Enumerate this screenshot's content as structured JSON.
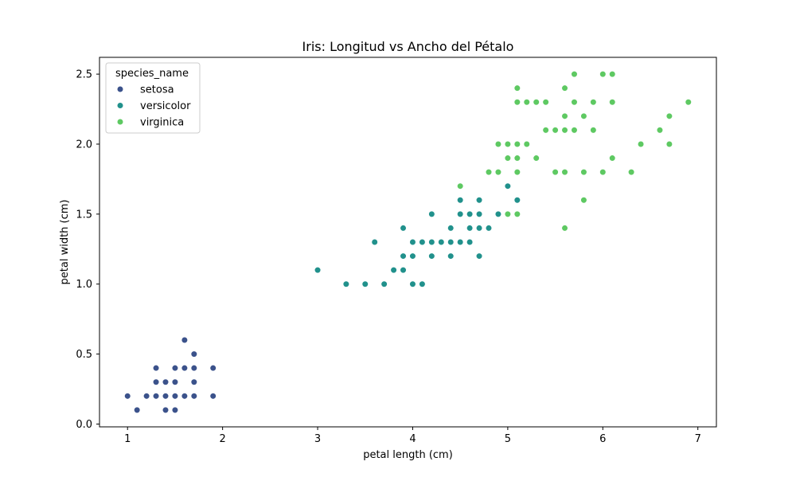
{
  "chart_data": {
    "type": "scatter",
    "title": "Iris: Longitud vs Ancho del Pétalo",
    "xlabel": "petal length (cm)",
    "ylabel": "petal width (cm)",
    "xlim": [
      0.705,
      7.195
    ],
    "ylim": [
      -0.02,
      2.62
    ],
    "x_ticks": [
      1,
      2,
      3,
      4,
      5,
      6,
      7
    ],
    "x_tick_labels": [
      "1",
      "2",
      "3",
      "4",
      "5",
      "6",
      "7"
    ],
    "y_ticks": [
      0.0,
      0.5,
      1.0,
      1.5,
      2.0,
      2.5
    ],
    "y_tick_labels": [
      "0.0",
      "0.5",
      "1.0",
      "1.5",
      "2.0",
      "2.5"
    ],
    "grid": false,
    "legend": {
      "title": "species_name",
      "placement": "top-left"
    },
    "series": [
      {
        "name": "setosa",
        "color": "#3b528b",
        "points": [
          [
            1.0,
            0.2
          ],
          [
            1.1,
            0.1
          ],
          [
            1.2,
            0.2
          ],
          [
            1.3,
            0.2
          ],
          [
            1.3,
            0.3
          ],
          [
            1.3,
            0.4
          ],
          [
            1.4,
            0.1
          ],
          [
            1.4,
            0.2
          ],
          [
            1.4,
            0.3
          ],
          [
            1.5,
            0.1
          ],
          [
            1.5,
            0.2
          ],
          [
            1.5,
            0.3
          ],
          [
            1.5,
            0.4
          ],
          [
            1.6,
            0.2
          ],
          [
            1.6,
            0.4
          ],
          [
            1.6,
            0.6
          ],
          [
            1.7,
            0.2
          ],
          [
            1.7,
            0.3
          ],
          [
            1.7,
            0.4
          ],
          [
            1.7,
            0.5
          ],
          [
            1.9,
            0.2
          ],
          [
            1.9,
            0.4
          ]
        ]
      },
      {
        "name": "versicolor",
        "color": "#21918c",
        "points": [
          [
            3.0,
            1.1
          ],
          [
            3.3,
            1.0
          ],
          [
            3.5,
            1.0
          ],
          [
            3.6,
            1.3
          ],
          [
            3.7,
            1.0
          ],
          [
            3.8,
            1.1
          ],
          [
            3.9,
            1.1
          ],
          [
            3.9,
            1.2
          ],
          [
            3.9,
            1.4
          ],
          [
            4.0,
            1.0
          ],
          [
            4.0,
            1.2
          ],
          [
            4.0,
            1.3
          ],
          [
            4.1,
            1.0
          ],
          [
            4.1,
            1.3
          ],
          [
            4.2,
            1.2
          ],
          [
            4.2,
            1.3
          ],
          [
            4.2,
            1.5
          ],
          [
            4.3,
            1.3
          ],
          [
            4.4,
            1.2
          ],
          [
            4.4,
            1.3
          ],
          [
            4.4,
            1.4
          ],
          [
            4.5,
            1.3
          ],
          [
            4.5,
            1.5
          ],
          [
            4.5,
            1.6
          ],
          [
            4.6,
            1.3
          ],
          [
            4.6,
            1.4
          ],
          [
            4.6,
            1.5
          ],
          [
            4.7,
            1.2
          ],
          [
            4.7,
            1.4
          ],
          [
            4.7,
            1.5
          ],
          [
            4.7,
            1.6
          ],
          [
            4.8,
            1.4
          ],
          [
            4.9,
            1.5
          ],
          [
            5.0,
            1.7
          ],
          [
            5.1,
            1.6
          ]
        ]
      },
      {
        "name": "virginica",
        "color": "#5ec962",
        "points": [
          [
            4.5,
            1.7
          ],
          [
            4.8,
            1.8
          ],
          [
            4.9,
            1.8
          ],
          [
            4.9,
            2.0
          ],
          [
            5.0,
            1.5
          ],
          [
            5.0,
            1.9
          ],
          [
            5.0,
            2.0
          ],
          [
            5.1,
            1.5
          ],
          [
            5.1,
            1.8
          ],
          [
            5.1,
            1.9
          ],
          [
            5.1,
            2.0
          ],
          [
            5.1,
            2.3
          ],
          [
            5.1,
            2.4
          ],
          [
            5.2,
            2.0
          ],
          [
            5.2,
            2.3
          ],
          [
            5.3,
            1.9
          ],
          [
            5.3,
            2.3
          ],
          [
            5.4,
            2.1
          ],
          [
            5.4,
            2.3
          ],
          [
            5.5,
            1.8
          ],
          [
            5.5,
            2.1
          ],
          [
            5.6,
            1.4
          ],
          [
            5.6,
            1.8
          ],
          [
            5.6,
            2.1
          ],
          [
            5.6,
            2.2
          ],
          [
            5.6,
            2.4
          ],
          [
            5.7,
            2.1
          ],
          [
            5.7,
            2.3
          ],
          [
            5.7,
            2.5
          ],
          [
            5.8,
            1.6
          ],
          [
            5.8,
            1.8
          ],
          [
            5.8,
            2.2
          ],
          [
            5.9,
            2.1
          ],
          [
            5.9,
            2.3
          ],
          [
            6.0,
            1.8
          ],
          [
            6.0,
            2.5
          ],
          [
            6.1,
            1.9
          ],
          [
            6.1,
            2.3
          ],
          [
            6.1,
            2.5
          ],
          [
            6.3,
            1.8
          ],
          [
            6.4,
            2.0
          ],
          [
            6.6,
            2.1
          ],
          [
            6.7,
            2.0
          ],
          [
            6.7,
            2.2
          ],
          [
            6.9,
            2.3
          ]
        ]
      }
    ]
  }
}
